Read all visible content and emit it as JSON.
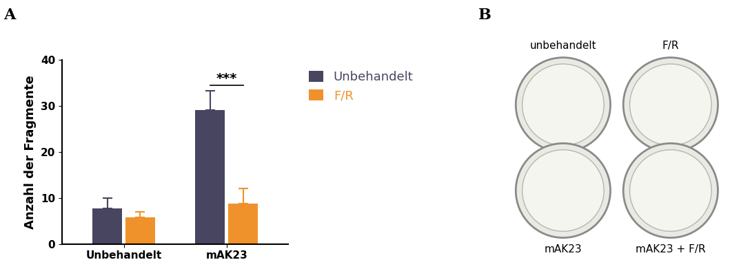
{
  "chart_data": {
    "type": "bar",
    "y_label": "Anzahl der Fragmente",
    "categories": [
      "Unbehandelt",
      "mAK23"
    ],
    "series": [
      {
        "name": "Unbehandelt",
        "color": "#47455f",
        "values": [
          7.7,
          29.1
        ],
        "errors": [
          2.3,
          4.1
        ]
      },
      {
        "name": "F/R",
        "color": "#f0922b",
        "values": [
          5.8,
          8.7
        ],
        "errors": [
          1.2,
          3.3
        ]
      }
    ],
    "ylim": [
      0,
      40
    ],
    "yticks": [
      0,
      10,
      20,
      30,
      40
    ],
    "legend": "upper left",
    "annotations": [
      {
        "text": "***",
        "category": "mAK23"
      }
    ]
  },
  "panel_labels": [
    "A",
    "B"
  ],
  "image_panel": {
    "labels": [
      "unbehandelt",
      "F/R",
      "mAK23",
      "mAK23 + F/R"
    ]
  }
}
